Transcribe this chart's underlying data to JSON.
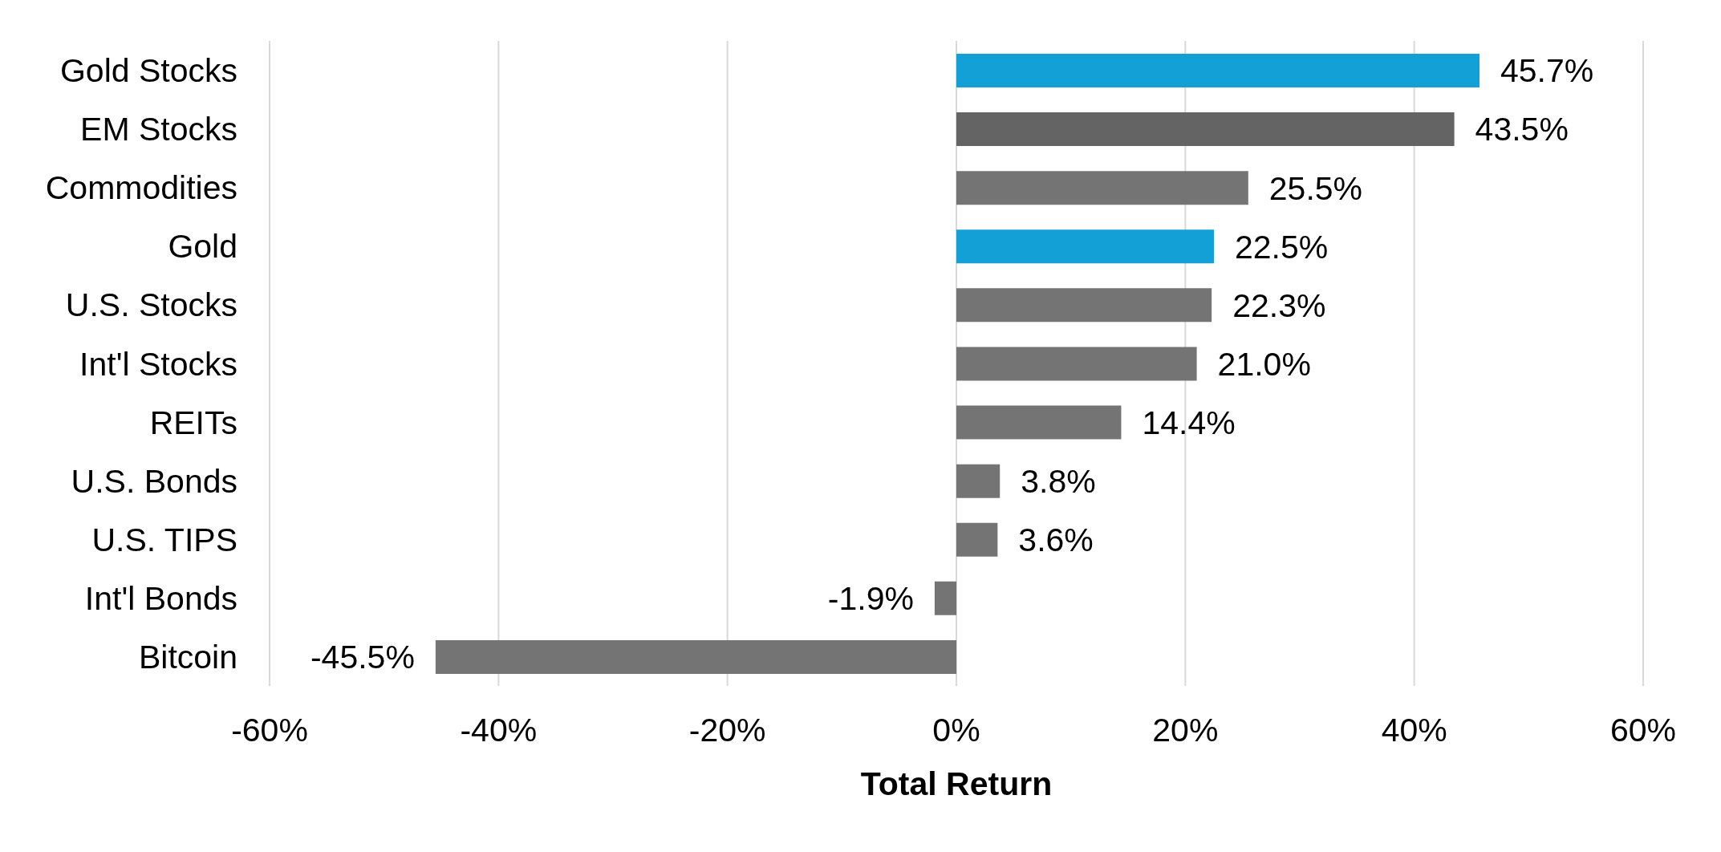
{
  "chart_data": {
    "type": "bar",
    "orientation": "horizontal",
    "categories": [
      "Gold Stocks",
      "EM Stocks",
      "Commodities",
      "Gold",
      "U.S. Stocks",
      "Int'l Stocks",
      "REITs",
      "U.S. Bonds",
      "U.S. TIPS",
      "Int'l Bonds",
      "Bitcoin"
    ],
    "values": [
      45.7,
      43.5,
      25.5,
      22.5,
      22.3,
      21.0,
      14.4,
      3.8,
      3.6,
      -1.9,
      -45.5
    ],
    "colors": [
      "#12a0d7",
      "#646464",
      "#747474",
      "#12a0d7",
      "#747474",
      "#747474",
      "#747474",
      "#747474",
      "#747474",
      "#747474",
      "#747474"
    ],
    "value_labels": [
      "45.7%",
      "43.5%",
      "25.5%",
      "22.5%",
      "22.3%",
      "21.0%",
      "14.4%",
      "3.8%",
      "3.6%",
      "-1.9%",
      "-45.5%"
    ],
    "xlabel": "Total Return",
    "xlim": [
      -60,
      60
    ],
    "xticks": [
      {
        "value": -60,
        "label": "-60%"
      },
      {
        "value": -40,
        "label": "-40%"
      },
      {
        "value": -20,
        "label": "-20%"
      },
      {
        "value": 0,
        "label": "0%"
      },
      {
        "value": 20,
        "label": "20%"
      },
      {
        "value": 40,
        "label": "40%"
      },
      {
        "value": 60,
        "label": "60%"
      }
    ],
    "grid": "x"
  }
}
